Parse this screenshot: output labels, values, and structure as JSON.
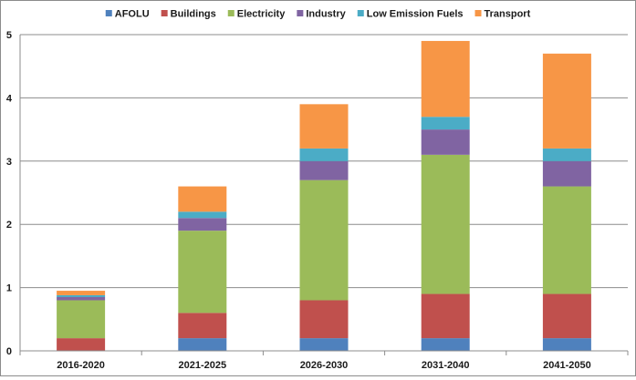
{
  "chart_data": {
    "type": "bar",
    "stacked": true,
    "categories": [
      "2016-2020",
      "2021-2025",
      "2026-2030",
      "2031-2040",
      "2041-2050"
    ],
    "series": [
      {
        "name": "AFOLU",
        "color": "#4f81bd",
        "values": [
          0.0,
          0.2,
          0.2,
          0.2,
          0.2
        ]
      },
      {
        "name": "Buildings",
        "color": "#c0504d",
        "values": [
          0.2,
          0.4,
          0.6,
          0.7,
          0.7
        ]
      },
      {
        "name": "Electricity",
        "color": "#9bbb59",
        "values": [
          0.6,
          1.3,
          1.9,
          2.2,
          1.7
        ]
      },
      {
        "name": "Industry",
        "color": "#8064a2",
        "values": [
          0.05,
          0.2,
          0.3,
          0.4,
          0.4
        ]
      },
      {
        "name": "Low Emission Fuels",
        "color": "#4bacc6",
        "values": [
          0.03,
          0.1,
          0.2,
          0.2,
          0.2
        ]
      },
      {
        "name": "Transport",
        "color": "#f79646",
        "values": [
          0.07,
          0.4,
          0.7,
          1.2,
          1.5
        ]
      }
    ],
    "ylim": [
      0,
      5
    ],
    "yticks": [
      "0",
      "1",
      "2",
      "3",
      "4",
      "5"
    ],
    "grid": true,
    "legend_position": "top"
  }
}
